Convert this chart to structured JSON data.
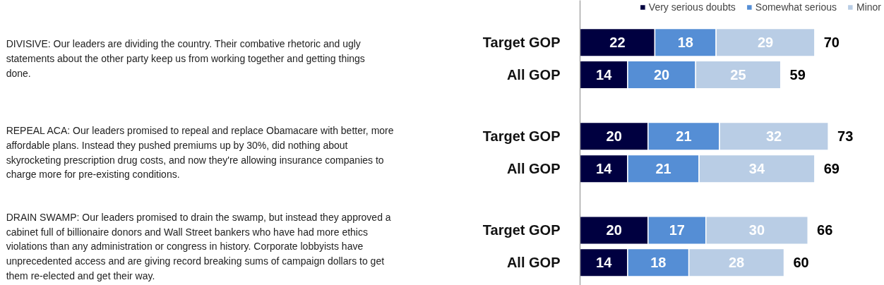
{
  "chart_data": {
    "type": "bar",
    "orientation": "horizontal",
    "stacked": true,
    "data_labels": true,
    "legend": "top right",
    "grid": false,
    "categories": [
      "Target GOP",
      "All GOP",
      "Target GOP",
      "All GOP",
      "Target GOP",
      "All GOP"
    ],
    "series": [
      {
        "name": "Very serious doubts",
        "color": "#000040",
        "values": [
          22,
          14,
          20,
          14,
          20,
          14
        ]
      },
      {
        "name": "Somewhat serious",
        "color": "#558ed5",
        "values": [
          18,
          20,
          21,
          21,
          17,
          18
        ]
      },
      {
        "name": "Minor",
        "color": "#b9cde5",
        "values": [
          29,
          25,
          32,
          34,
          30,
          28
        ]
      }
    ],
    "totals": [
      "70",
      "59",
      "73",
      "69",
      "66",
      "60"
    ],
    "annotations": [
      "DIVISIVE: Our leaders are dividing the country. Their combative rhetoric and ugly statements about the other party keep us from working together and getting things done.",
      "REPEAL ACA: Our leaders promised to repeal and replace Obamacare with better, more affordable plans. Instead they pushed premiums up by 30%, did nothing about skyrocketing prescription drug costs, and now they're allowing insurance companies to charge more for pre-existing conditions.",
      "DRAIN SWAMP: Our leaders promised to drain the swamp, but instead they approved a cabinet full of billionaire donors and Wall Street bankers who have had more ethics violations than any administration or congress in history. Corporate lobbyists have unprecedented access and are giving record breaking sums of campaign dollars to get them re-elected and get their way."
    ]
  }
}
